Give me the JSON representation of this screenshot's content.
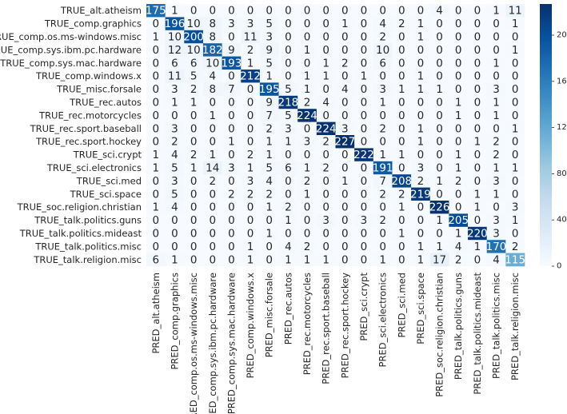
{
  "chart_data": {
    "type": "heatmap",
    "x": [
      "PRED_alt.atheism",
      "PRED_comp.graphics",
      "PRED_comp.os.ms-windows.misc",
      "PRED_comp.sys.ibm.pc.hardware",
      "PRED_comp.sys.mac.hardware",
      "PRED_comp.windows.x",
      "PRED_misc.forsale",
      "PRED_rec.autos",
      "PRED_rec.motorcycles",
      "PRED_rec.sport.baseball",
      "PRED_rec.sport.hockey",
      "PRED_sci.crypt",
      "PRED_sci.electronics",
      "PRED_sci.med",
      "PRED_sci.space",
      "PRED_soc.religion.christian",
      "PRED_talk.politics.guns",
      "PRED_talk.politics.mideast",
      "PRED_talk.politics.misc",
      "PRED_talk.religion.misc"
    ],
    "y": [
      "TRUE_alt.atheism",
      "TRUE_comp.graphics",
      "TRUE_comp.os.ms-windows.misc",
      "TRUE_comp.sys.ibm.pc.hardware",
      "TRUE_comp.sys.mac.hardware",
      "TRUE_comp.windows.x",
      "TRUE_misc.forsale",
      "TRUE_rec.autos",
      "TRUE_rec.motorcycles",
      "TRUE_rec.sport.baseball",
      "TRUE_rec.sport.hockey",
      "TRUE_sci.crypt",
      "TRUE_sci.electronics",
      "TRUE_sci.med",
      "TRUE_sci.space",
      "TRUE_soc.religion.christian",
      "TRUE_talk.politics.guns",
      "TRUE_talk.politics.mideast",
      "TRUE_talk.politics.misc",
      "TRUE_talk.religion.misc"
    ],
    "z": [
      [
        175,
        1,
        0,
        0,
        0,
        0,
        0,
        0,
        0,
        0,
        0,
        0,
        0,
        0,
        0,
        4,
        0,
        0,
        1,
        11
      ],
      [
        0,
        196,
        10,
        8,
        3,
        3,
        5,
        0,
        0,
        0,
        1,
        0,
        4,
        2,
        1,
        0,
        0,
        0,
        0,
        1
      ],
      [
        1,
        10,
        200,
        8,
        0,
        11,
        3,
        0,
        0,
        0,
        0,
        0,
        2,
        0,
        1,
        0,
        0,
        0,
        0,
        0
      ],
      [
        0,
        12,
        10,
        182,
        9,
        2,
        9,
        0,
        1,
        0,
        0,
        0,
        10,
        0,
        0,
        0,
        0,
        0,
        0,
        1
      ],
      [
        0,
        6,
        6,
        10,
        193,
        1,
        5,
        0,
        0,
        1,
        2,
        0,
        6,
        0,
        0,
        0,
        0,
        0,
        1,
        0
      ],
      [
        0,
        11,
        5,
        4,
        0,
        212,
        1,
        0,
        1,
        1,
        0,
        1,
        0,
        0,
        1,
        0,
        0,
        0,
        0,
        0
      ],
      [
        0,
        3,
        2,
        8,
        7,
        0,
        195,
        5,
        1,
        0,
        4,
        0,
        3,
        1,
        1,
        1,
        0,
        0,
        3,
        0
      ],
      [
        0,
        1,
        1,
        0,
        0,
        0,
        9,
        218,
        2,
        4,
        0,
        0,
        1,
        0,
        0,
        0,
        1,
        0,
        1,
        0
      ],
      [
        0,
        0,
        0,
        1,
        0,
        0,
        7,
        5,
        224,
        0,
        0,
        0,
        0,
        0,
        0,
        0,
        1,
        0,
        1,
        0
      ],
      [
        0,
        3,
        0,
        0,
        0,
        0,
        2,
        3,
        0,
        224,
        3,
        0,
        2,
        0,
        1,
        0,
        0,
        0,
        0,
        1
      ],
      [
        0,
        2,
        0,
        0,
        1,
        0,
        1,
        1,
        3,
        2,
        227,
        0,
        0,
        0,
        1,
        0,
        0,
        1,
        2,
        0
      ],
      [
        1,
        4,
        2,
        1,
        0,
        2,
        1,
        0,
        0,
        0,
        0,
        222,
        1,
        1,
        0,
        0,
        1,
        0,
        2,
        0
      ],
      [
        1,
        5,
        1,
        14,
        3,
        1,
        5,
        6,
        1,
        2,
        0,
        0,
        191,
        0,
        3,
        0,
        1,
        0,
        1,
        1
      ],
      [
        0,
        3,
        0,
        2,
        0,
        3,
        4,
        0,
        2,
        0,
        1,
        0,
        7,
        208,
        2,
        1,
        2,
        0,
        3,
        0
      ],
      [
        0,
        5,
        0,
        0,
        2,
        2,
        2,
        0,
        1,
        0,
        0,
        0,
        2,
        2,
        219,
        0,
        0,
        1,
        1,
        0
      ],
      [
        1,
        4,
        0,
        0,
        0,
        0,
        1,
        2,
        0,
        0,
        0,
        0,
        0,
        1,
        0,
        226,
        0,
        1,
        0,
        3
      ],
      [
        0,
        0,
        0,
        0,
        0,
        0,
        0,
        1,
        0,
        3,
        0,
        3,
        2,
        0,
        0,
        1,
        205,
        0,
        3,
        1
      ],
      [
        0,
        0,
        0,
        0,
        0,
        0,
        1,
        0,
        0,
        0,
        0,
        0,
        0,
        1,
        0,
        0,
        1,
        220,
        3,
        0
      ],
      [
        0,
        0,
        0,
        0,
        0,
        1,
        0,
        4,
        2,
        0,
        0,
        0,
        0,
        0,
        1,
        1,
        4,
        1,
        170,
        2
      ],
      [
        6,
        1,
        0,
        0,
        0,
        1,
        0,
        1,
        1,
        1,
        0,
        0,
        1,
        0,
        1,
        17,
        2,
        0,
        4,
        115
      ]
    ],
    "clim": [
      0,
      227
    ],
    "cticks": [
      0,
      40,
      80,
      120,
      160,
      200
    ],
    "colormap": [
      "#f7fbff",
      "#deebf7",
      "#c6dbef",
      "#9ecae1",
      "#6baed6",
      "#4292c6",
      "#2171b5",
      "#08519c",
      "#08306b"
    ]
  }
}
